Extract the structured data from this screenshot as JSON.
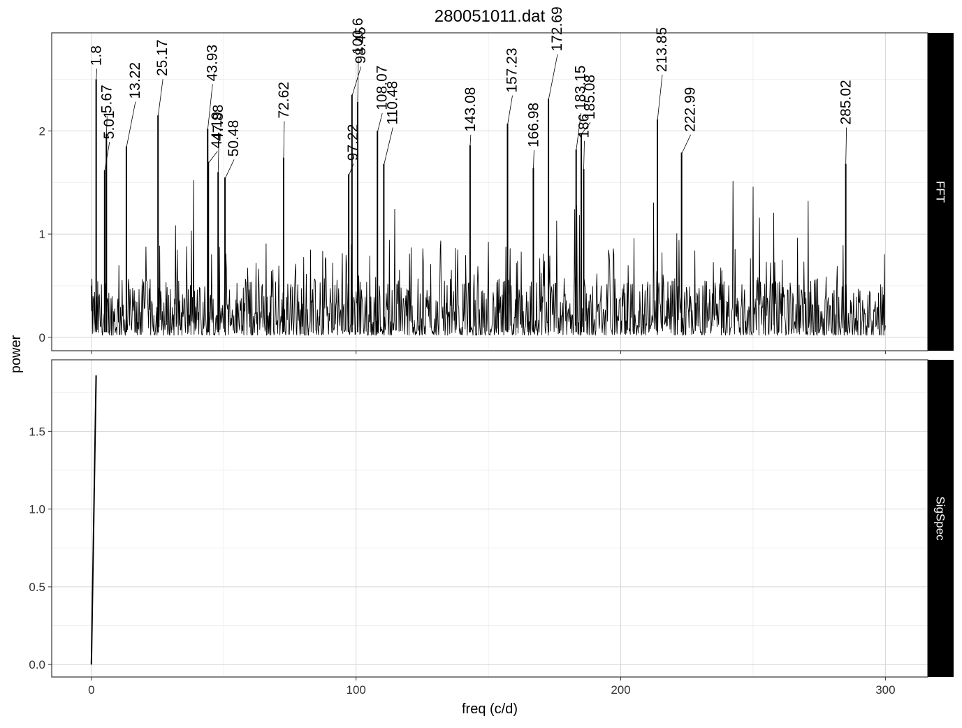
{
  "chart_data": {
    "type": "line",
    "title": "280051011.dat",
    "xlabel": "freq (c/d)",
    "ylabel": "power",
    "xlim": [
      -15,
      316
    ],
    "x_ticks": [
      "0",
      "100",
      "200",
      "300"
    ],
    "grid": true,
    "panels": [
      {
        "strip": "FFT",
        "ylim": [
          -0.13,
          2.95
        ],
        "y_ticks": [
          "0",
          "1",
          "2"
        ],
        "series": [
          {
            "style": "dense noisy periodogram 0-300 c/d, baseline 0-0.6 with many spikes",
            "peaks": [
              {
                "x": 1.8,
                "y": 2.5
              },
              {
                "x": 5.01,
                "y": 1.62
              },
              {
                "x": 5.67,
                "y": 1.97
              },
              {
                "x": 13.22,
                "y": 1.85
              },
              {
                "x": 25.17,
                "y": 2.15
              },
              {
                "x": 43.93,
                "y": 2.02
              },
              {
                "x": 44.19,
                "y": 1.7
              },
              {
                "x": 47.88,
                "y": 1.6
              },
              {
                "x": 50.48,
                "y": 1.55
              },
              {
                "x": 72.62,
                "y": 1.74
              },
              {
                "x": 97.22,
                "y": 1.58
              },
              {
                "x": 98.45,
                "y": 2.35
              },
              {
                "x": 100.6,
                "y": 2.28
              },
              {
                "x": 108.07,
                "y": 2.0
              },
              {
                "x": 110.48,
                "y": 1.68
              },
              {
                "x": 143.08,
                "y": 1.86
              },
              {
                "x": 157.23,
                "y": 2.07
              },
              {
                "x": 166.98,
                "y": 1.64
              },
              {
                "x": 172.69,
                "y": 2.31
              },
              {
                "x": 183.15,
                "y": 1.82
              },
              {
                "x": 185.08,
                "y": 1.98
              },
              {
                "x": 186,
                "y": 1.63
              },
              {
                "x": 213.85,
                "y": 2.11
              },
              {
                "x": 222.99,
                "y": 1.79
              },
              {
                "x": 285.02,
                "y": 1.68
              }
            ]
          }
        ],
        "annotations": [
          {
            "label": "1.8",
            "x": 1.8
          },
          {
            "label": "5.01",
            "x": 5.01
          },
          {
            "label": "13.22",
            "x": 13.22
          },
          {
            "label": "5.67",
            "x": 5.67
          },
          {
            "label": "25.17",
            "x": 25.17
          },
          {
            "label": "44.19",
            "x": 44.19
          },
          {
            "label": "47.88",
            "x": 47.88
          },
          {
            "label": "43.93",
            "x": 43.93
          },
          {
            "label": "50.48",
            "x": 50.48
          },
          {
            "label": "72.62",
            "x": 72.62
          },
          {
            "label": "97.22",
            "x": 97.22
          },
          {
            "label": "98.45",
            "x": 98.45
          },
          {
            "label": "100.6",
            "x": 100.6
          },
          {
            "label": "108.07",
            "x": 108.07
          },
          {
            "label": "110.48",
            "x": 110.48
          },
          {
            "label": "143.08",
            "x": 143.08
          },
          {
            "label": "157.23",
            "x": 157.23
          },
          {
            "label": "172.69",
            "x": 172.69
          },
          {
            "label": "166.98",
            "x": 166.98
          },
          {
            "label": "183.15",
            "x": 183.15
          },
          {
            "label": "185.08",
            "x": 185.08
          },
          {
            "label": "186",
            "x": 186
          },
          {
            "label": "213.85",
            "x": 213.85
          },
          {
            "label": "222.99",
            "x": 222.99
          },
          {
            "label": "285.02",
            "x": 285.02
          }
        ]
      },
      {
        "strip": "SigSpec",
        "ylim": [
          -0.08,
          1.96
        ],
        "y_ticks": [
          "0.0",
          "0.5",
          "1.0",
          "1.5"
        ],
        "series": [
          {
            "x": [
              0,
              1.8
            ],
            "y": [
              0,
              1.86
            ]
          }
        ]
      }
    ]
  }
}
